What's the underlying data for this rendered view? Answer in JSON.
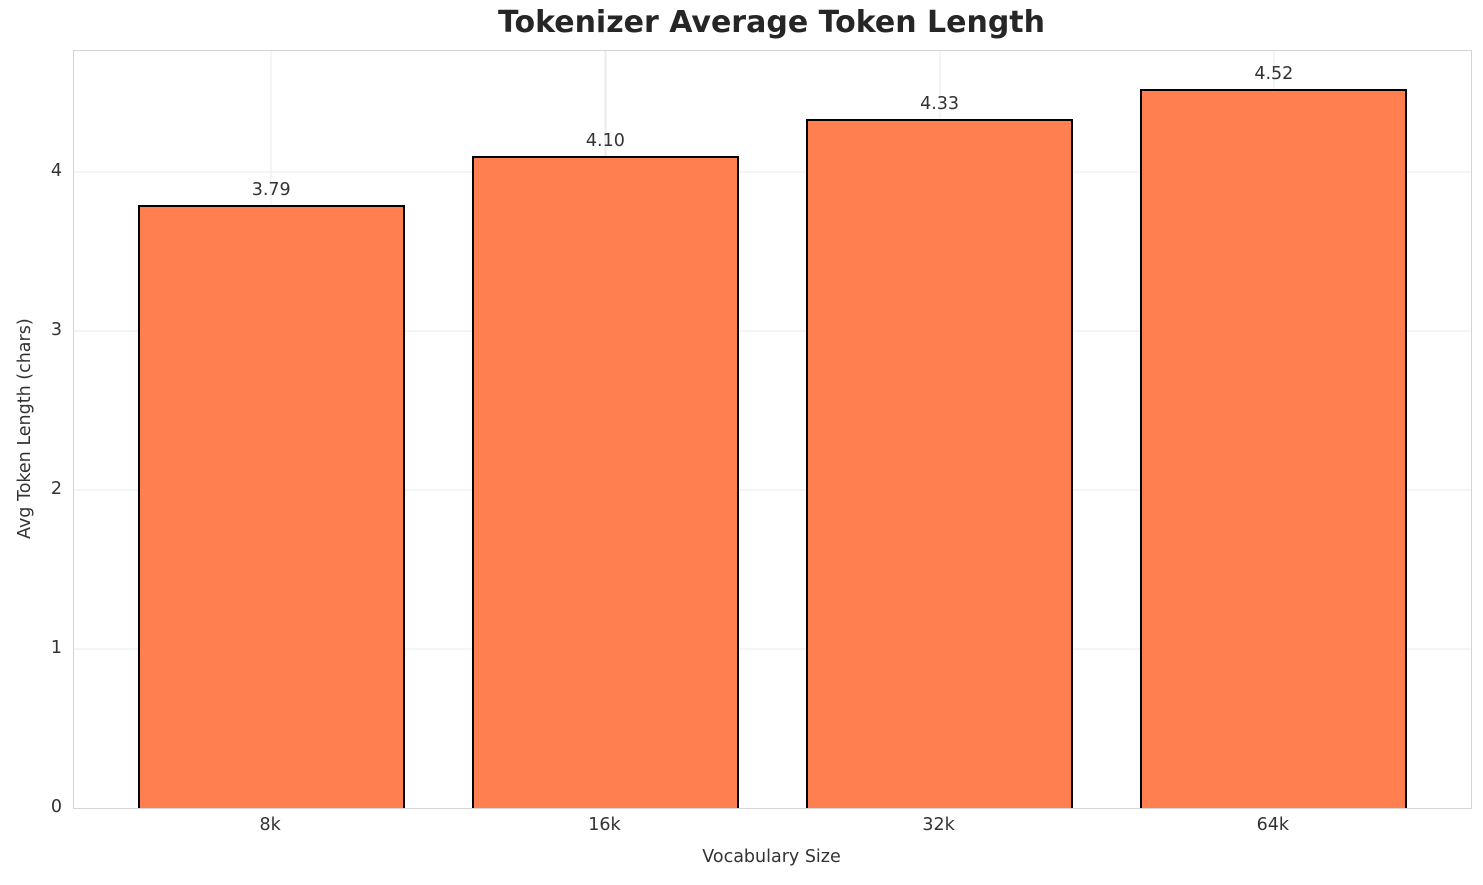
{
  "chart_data": {
    "type": "bar",
    "title": "Tokenizer Average Token Length",
    "xlabel": "Vocabulary Size",
    "ylabel": "Avg Token Length (chars)",
    "categories": [
      "8k",
      "16k",
      "32k",
      "64k"
    ],
    "values": [
      3.79,
      4.1,
      4.33,
      4.52
    ],
    "value_labels": [
      "3.79",
      "4.10",
      "4.33",
      "4.52"
    ],
    "yticks": [
      0,
      1,
      2,
      3,
      4
    ],
    "ylim": [
      0,
      4.76
    ],
    "xlim": [
      -0.59,
      3.59
    ],
    "bar_width": 0.8,
    "grid": true,
    "legend": "none",
    "colors": {
      "bar_fill": "#FF7F50",
      "bar_edge": "#000000",
      "grid_line": "#ebebeb",
      "spine": "#d4d4d4",
      "title_text": "#262626",
      "label_text": "#333333",
      "background": "#ffffff"
    }
  }
}
